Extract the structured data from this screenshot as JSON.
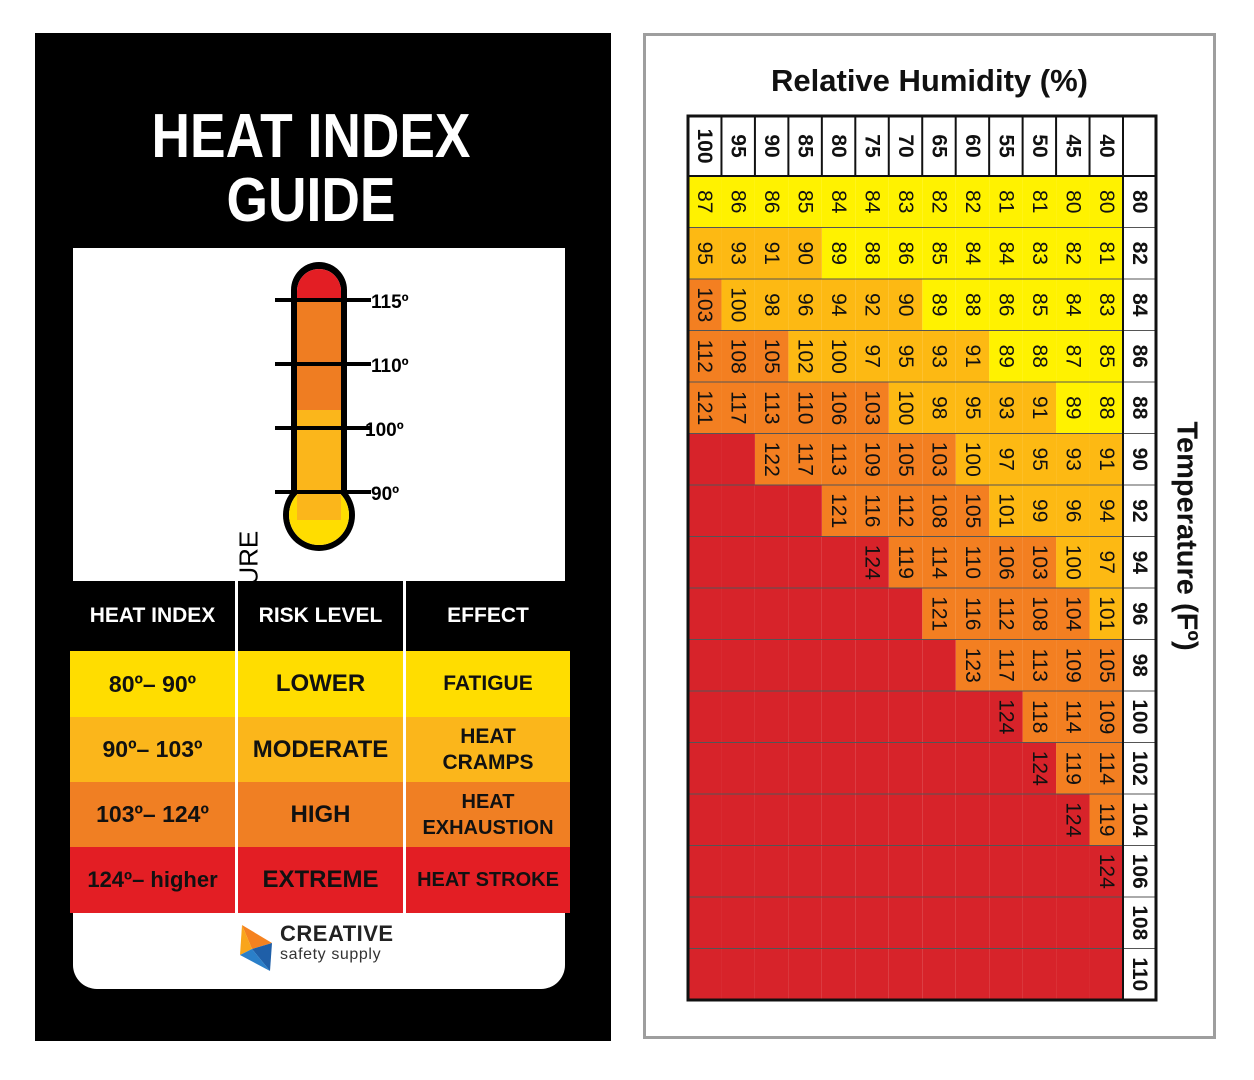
{
  "guide": {
    "title_line1": "HEAT INDEX",
    "title_line2": "GUIDE",
    "thermometer": {
      "axis_label": "TEMPERATURE",
      "ticks": [
        "115º",
        "110º",
        "100º",
        "90º"
      ],
      "colors": {
        "top": "#e31e24",
        "upper": "#ef7d22",
        "lower": "#fbb61b",
        "bulb": "#ffdd00"
      }
    },
    "table": {
      "headers": [
        "HEAT INDEX",
        "RISK LEVEL",
        "EFFECT"
      ],
      "rows": [
        {
          "range": "80º– 90º",
          "risk": "LOWER",
          "effect": "FATIGUE",
          "color": "#ffdd00"
        },
        {
          "range": "90º– 103º",
          "risk": "MODERATE",
          "effect": "HEAT CRAMPS",
          "color": "#fbb61b"
        },
        {
          "range": "103º– 124º",
          "risk": "HIGH",
          "effect": "HEAT EXHAUSTION",
          "color": "#f07f23"
        },
        {
          "range": "124º– higher",
          "risk": "EXTREME",
          "effect": "HEAT STROKE",
          "color": "#e31e24"
        }
      ]
    },
    "logo": {
      "name": "CREATIVE",
      "tagline": "safety supply"
    }
  },
  "chart_data": {
    "type": "heatmap",
    "title": "Relative Humidity (%)",
    "ylabel": "Temperature (Fº)",
    "humidity": [
      40,
      45,
      50,
      55,
      60,
      65,
      70,
      75,
      80,
      85,
      90,
      95,
      100
    ],
    "temperature": [
      80,
      82,
      84,
      86,
      88,
      90,
      92,
      94,
      96,
      98,
      100,
      102,
      104,
      106,
      108,
      110
    ],
    "values": [
      [
        80,
        80,
        81,
        81,
        82,
        82,
        83,
        84,
        84,
        85,
        86,
        86,
        87
      ],
      [
        81,
        82,
        83,
        84,
        84,
        85,
        86,
        88,
        89,
        90,
        91,
        93,
        95
      ],
      [
        83,
        84,
        85,
        86,
        88,
        89,
        90,
        92,
        94,
        96,
        98,
        100,
        103
      ],
      [
        85,
        87,
        88,
        89,
        91,
        93,
        95,
        97,
        100,
        102,
        105,
        108,
        112
      ],
      [
        88,
        89,
        91,
        93,
        95,
        98,
        100,
        103,
        106,
        110,
        113,
        117,
        121
      ],
      [
        91,
        93,
        95,
        97,
        100,
        103,
        105,
        109,
        113,
        117,
        122,
        null,
        null
      ],
      [
        94,
        96,
        99,
        101,
        105,
        108,
        112,
        116,
        121,
        null,
        null,
        null,
        null
      ],
      [
        97,
        100,
        103,
        106,
        110,
        114,
        119,
        124,
        null,
        null,
        null,
        null,
        null
      ],
      [
        101,
        104,
        108,
        112,
        116,
        121,
        null,
        null,
        null,
        null,
        null,
        null,
        null
      ],
      [
        105,
        109,
        113,
        117,
        123,
        null,
        null,
        null,
        null,
        null,
        null,
        null,
        null
      ],
      [
        109,
        114,
        118,
        124,
        null,
        null,
        null,
        null,
        null,
        null,
        null,
        null,
        null
      ],
      [
        114,
        119,
        124,
        null,
        null,
        null,
        null,
        null,
        null,
        null,
        null,
        null,
        null
      ],
      [
        119,
        124,
        null,
        null,
        null,
        null,
        null,
        null,
        null,
        null,
        null,
        null,
        null
      ],
      [
        124,
        null,
        null,
        null,
        null,
        null,
        null,
        null,
        null,
        null,
        null,
        null,
        null
      ],
      [
        null,
        null,
        null,
        null,
        null,
        null,
        null,
        null,
        null,
        null,
        null,
        null,
        null
      ],
      [
        null,
        null,
        null,
        null,
        null,
        null,
        null,
        null,
        null,
        null,
        null,
        null,
        null
      ]
    ],
    "band_colors": {
      "lower": "#fff200",
      "moderate": "#fdb913",
      "high": "#f37f21",
      "extreme": "#d7232a"
    }
  }
}
